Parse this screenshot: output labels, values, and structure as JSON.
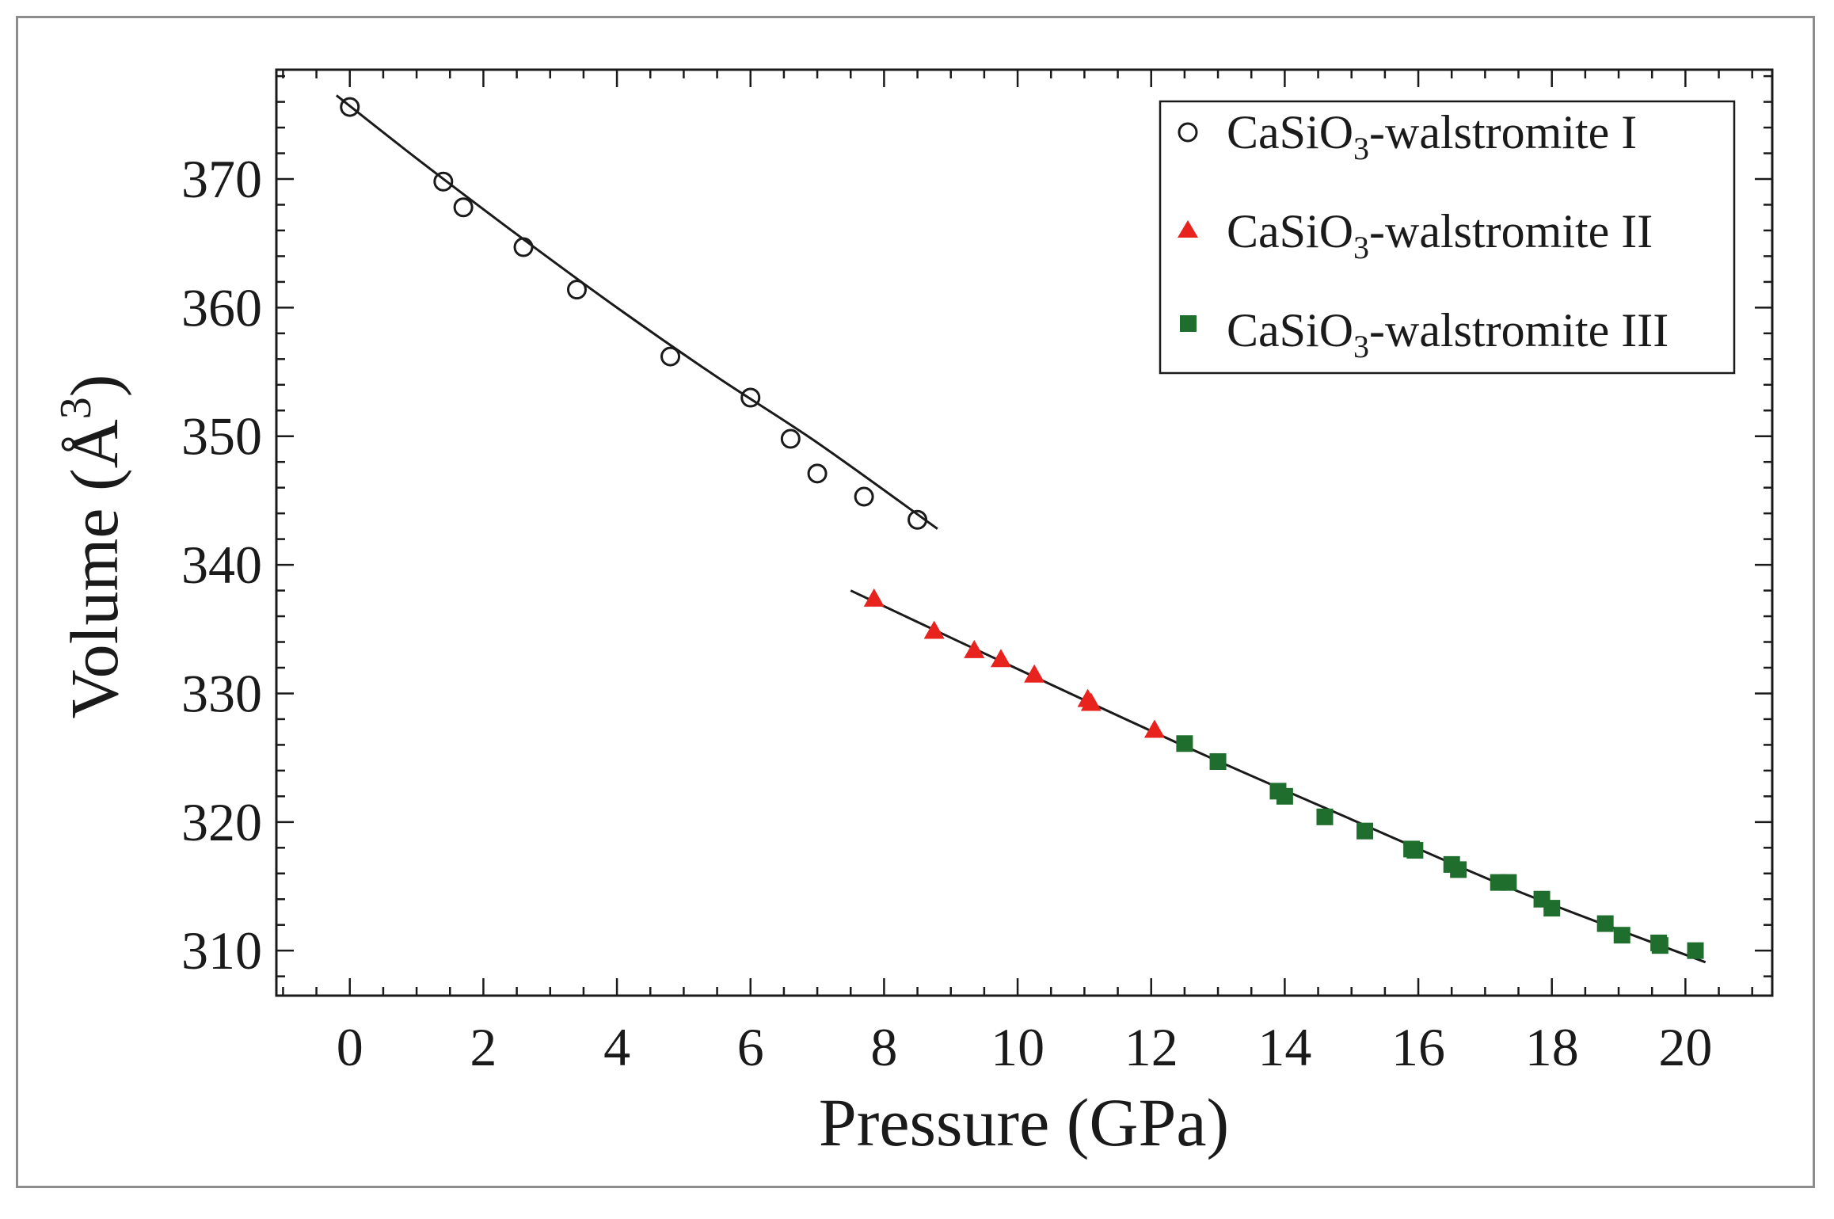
{
  "chart_data": {
    "type": "scatter",
    "title": "",
    "xlabel": "Pressure (GPa)",
    "ylabel": "Volume (Å³)",
    "ylabel_base": "Volume (Å",
    "ylabel_sup": "3",
    "ylabel_close": ")",
    "xlim": [
      -1.1,
      21.3
    ],
    "ylim": [
      306.5,
      378.5
    ],
    "xticks": [
      0,
      2,
      4,
      6,
      8,
      10,
      12,
      14,
      16,
      18,
      20
    ],
    "yticks": [
      310,
      320,
      330,
      340,
      350,
      360,
      370
    ],
    "xtick_labels": [
      "0",
      "2",
      "4",
      "6",
      "8",
      "10",
      "12",
      "14",
      "16",
      "18",
      "20"
    ],
    "ytick_labels": [
      "310",
      "320",
      "330",
      "340",
      "350",
      "360",
      "370"
    ],
    "legend_position": "top-right",
    "series": [
      {
        "name": "CaSiO3-walstromite I",
        "legend_parts": [
          "CaSiO",
          "3",
          "-walstromite I"
        ],
        "marker": "circle-open",
        "color": "#1a1a1a",
        "points": [
          [
            0,
            375.6
          ],
          [
            1.4,
            369.8
          ],
          [
            1.7,
            367.8
          ],
          [
            2.6,
            364.7
          ],
          [
            3.4,
            361.4
          ],
          [
            4.8,
            356.2
          ],
          [
            6.0,
            353.0
          ],
          [
            6.6,
            349.8
          ],
          [
            7.0,
            347.1
          ],
          [
            7.7,
            345.3
          ],
          [
            8.5,
            343.5
          ]
        ],
        "fit": [
          [
            -0.2,
            376.5
          ],
          [
            1.0,
            371.6
          ],
          [
            2.5,
            365.7
          ],
          [
            4.0,
            360.0
          ],
          [
            5.5,
            354.6
          ],
          [
            7.0,
            349.5
          ],
          [
            8.8,
            342.8
          ]
        ]
      },
      {
        "name": "CaSiO3-walstromite II",
        "legend_parts": [
          "CaSiO",
          "3",
          "-walstromite II"
        ],
        "marker": "triangle",
        "color": "#e8231e",
        "points": [
          [
            7.85,
            337.3
          ],
          [
            8.75,
            334.8
          ],
          [
            9.35,
            333.3
          ],
          [
            9.75,
            332.6
          ],
          [
            10.25,
            331.4
          ],
          [
            11.05,
            329.5
          ],
          [
            11.1,
            329.2
          ],
          [
            12.05,
            327.1
          ]
        ]
      },
      {
        "name": "CaSiO3-walstromite III",
        "legend_parts": [
          "CaSiO",
          "3",
          "-walstromite III"
        ],
        "marker": "square",
        "color": "#1f6e2d",
        "points": [
          [
            12.5,
            326.1
          ],
          [
            13.0,
            324.7
          ],
          [
            13.9,
            322.4
          ],
          [
            14.0,
            322.0
          ],
          [
            14.6,
            320.4
          ],
          [
            15.2,
            319.3
          ],
          [
            15.9,
            317.9
          ],
          [
            15.95,
            317.8
          ],
          [
            16.5,
            316.7
          ],
          [
            16.6,
            316.3
          ],
          [
            17.2,
            315.3
          ],
          [
            17.35,
            315.3
          ],
          [
            17.85,
            314.0
          ],
          [
            18.0,
            313.3
          ],
          [
            18.8,
            312.1
          ],
          [
            19.05,
            311.2
          ],
          [
            19.6,
            310.6
          ],
          [
            19.62,
            310.4
          ],
          [
            20.15,
            310.0
          ]
        ]
      }
    ],
    "fit_high_pressure": [
      [
        7.5,
        338.0
      ],
      [
        10.0,
        331.9
      ],
      [
        12.5,
        325.9
      ],
      [
        15.0,
        320.2
      ],
      [
        17.5,
        314.6
      ],
      [
        20.3,
        309.1
      ]
    ]
  }
}
